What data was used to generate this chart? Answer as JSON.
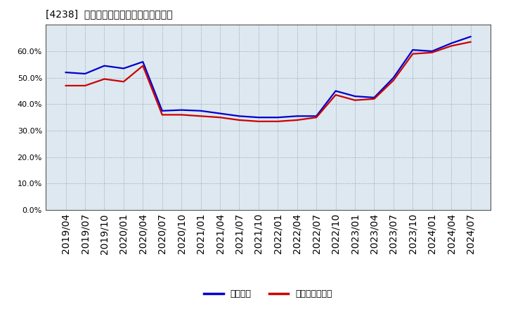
{
  "title": "[4238]  固定比率、固定長期適合率の推移",
  "x_labels": [
    "2019/04",
    "2019/07",
    "2019/10",
    "2020/01",
    "2020/04",
    "2020/07",
    "2020/10",
    "2021/01",
    "2021/04",
    "2021/07",
    "2021/10",
    "2022/01",
    "2022/04",
    "2022/07",
    "2022/10",
    "2023/01",
    "2023/04",
    "2023/07",
    "2023/10",
    "2024/01",
    "2024/04",
    "2024/07"
  ],
  "fixed_ratio": [
    52.0,
    51.5,
    54.5,
    53.5,
    56.0,
    37.5,
    37.8,
    37.5,
    36.5,
    35.5,
    35.0,
    35.0,
    35.5,
    35.5,
    45.0,
    43.0,
    42.5,
    50.0,
    60.5,
    60.0,
    63.0,
    65.5
  ],
  "fixed_long_ratio": [
    47.0,
    47.0,
    49.5,
    48.5,
    54.5,
    36.0,
    36.0,
    35.5,
    35.0,
    34.0,
    33.5,
    33.5,
    34.0,
    35.0,
    43.5,
    41.5,
    42.0,
    49.0,
    59.0,
    59.5,
    62.0,
    63.5
  ],
  "blue_color": "#0000cc",
  "red_color": "#cc0000",
  "bg_color": "#ffffff",
  "plot_bg_color": "#dde8f0",
  "grid_color": "#aaaaaa",
  "ylim": [
    0,
    70
  ],
  "yticks": [
    0,
    10,
    20,
    30,
    40,
    50,
    60
  ],
  "legend_blue": "固定比率",
  "legend_red": "固定長期適合率",
  "title_fontsize": 13,
  "tick_fontsize": 8,
  "legend_fontsize": 9
}
